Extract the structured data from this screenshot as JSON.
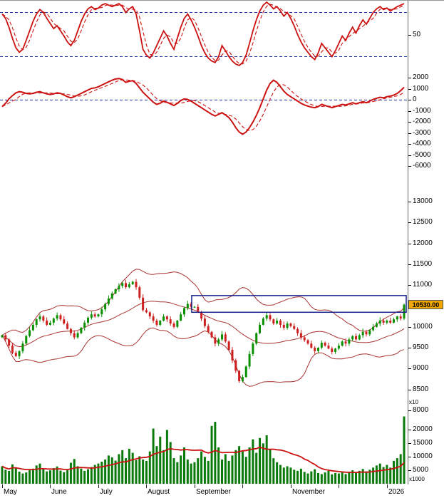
{
  "colors": {
    "indicator_red": "#cc1111",
    "band_red": "#aa3333",
    "candle_up_green": "#089000",
    "candle_down_red": "#cc2020",
    "dashed_blue": "#2233aa",
    "volume_green": "#0a7a0a",
    "annotation_blue": "#16228c",
    "price_label_bg": "#f0a800"
  },
  "x_axis": {
    "labels": [
      {
        "text": "May",
        "i": 0
      },
      {
        "text": "June",
        "i": 14
      },
      {
        "text": "July",
        "i": 28
      },
      {
        "text": "August",
        "i": 42
      },
      {
        "text": "September",
        "i": 56
      },
      {
        "text": "November",
        "i": 84
      },
      {
        "text": "2026",
        "i": 112
      }
    ],
    "minor_ticks": [
      70,
      98
    ]
  },
  "chart_data": [
    {
      "id": "oscillator",
      "type": "line",
      "legend": [
        "%K solid red",
        "%D dashed red"
      ],
      "ylim": [
        4,
        96
      ],
      "yticks": [
        50
      ],
      "reference_lines": [
        80,
        20
      ],
      "values": [
        78,
        72,
        60,
        45,
        32,
        26,
        30,
        42,
        55,
        68,
        78,
        84,
        80,
        72,
        65,
        58,
        62,
        55,
        48,
        40,
        35,
        42,
        55,
        68,
        78,
        85,
        88,
        84,
        86,
        90,
        92,
        90,
        88,
        90,
        92,
        88,
        80,
        85,
        88,
        78,
        55,
        30,
        22,
        18,
        25,
        35,
        45,
        55,
        48,
        38,
        30,
        45,
        60,
        72,
        78,
        70,
        60,
        48,
        35,
        25,
        18,
        14,
        12,
        20,
        35,
        28,
        20,
        14,
        10,
        8,
        12,
        22,
        38,
        55,
        70,
        82,
        90,
        94,
        90,
        85,
        88,
        82,
        75,
        80,
        72,
        62,
        50,
        40,
        32,
        26,
        20,
        16,
        25,
        38,
        32,
        26,
        20,
        28,
        38,
        48,
        42,
        52,
        60,
        52,
        62,
        70,
        64,
        72,
        80,
        85,
        88,
        84,
        86,
        82,
        85,
        88,
        90,
        92
      ],
      "signal_smoothing": 3
    },
    {
      "id": "momentum",
      "type": "line",
      "legend": [
        "momentum solid red",
        "signal dashed red"
      ],
      "ylim": [
        -6500,
        2800
      ],
      "yticks": [
        2000,
        1000,
        0,
        -1000,
        -2000,
        -3000,
        -4000,
        -5000,
        -6000
      ],
      "zero_line": 0,
      "values": [
        -600,
        -300,
        100,
        400,
        650,
        750,
        700,
        600,
        550,
        600,
        700,
        750,
        650,
        550,
        500,
        550,
        650,
        600,
        450,
        300,
        200,
        300,
        450,
        600,
        750,
        900,
        1050,
        1100,
        1200,
        1350,
        1500,
        1650,
        1800,
        1900,
        1950,
        1850,
        1600,
        1700,
        1750,
        1500,
        1100,
        700,
        400,
        100,
        -200,
        -400,
        -300,
        -100,
        -200,
        -350,
        -500,
        -300,
        -50,
        100,
        50,
        -100,
        -300,
        -500,
        -700,
        -900,
        -1100,
        -1300,
        -1450,
        -1300,
        -1150,
        -1350,
        -1600,
        -2000,
        -2500,
        -2900,
        -3100,
        -2900,
        -2500,
        -2000,
        -1400,
        -700,
        100,
        900,
        1500,
        1800,
        1600,
        1200,
        800,
        500,
        300,
        100,
        -100,
        -300,
        -450,
        -550,
        -650,
        -700,
        -600,
        -400,
        -500,
        -600,
        -700,
        -600,
        -500,
        -400,
        -450,
        -350,
        -250,
        -350,
        -250,
        -150,
        -250,
        -100,
        50,
        150,
        250,
        200,
        300,
        350,
        450,
        600,
        850,
        1150
      ],
      "signal_smoothing": 5
    },
    {
      "id": "price",
      "type": "candlestick",
      "ylim": [
        8000,
        13700
      ],
      "yticks": [
        13000,
        12500,
        12000,
        11500,
        11000,
        10500,
        10000,
        9500,
        9000,
        8500,
        8000
      ],
      "scale_label": "x10",
      "last_price_label": "10530.00",
      "bollinger_period": 20,
      "bollinger_stddev": 2,
      "annotation_rect": {
        "start_index": 56,
        "price_top": 10750,
        "price_bottom": 10350
      },
      "closes": [
        9800,
        9700,
        9550,
        9380,
        9300,
        9420,
        9600,
        9780,
        9920,
        10050,
        10180,
        10250,
        10150,
        10050,
        10100,
        10200,
        10280,
        10180,
        10080,
        9950,
        9850,
        9750,
        9850,
        9980,
        10100,
        10220,
        10300,
        10250,
        10300,
        10420,
        10550,
        10680,
        10800,
        10900,
        10980,
        11050,
        10950,
        11020,
        11080,
        10950,
        10700,
        10400,
        10350,
        10250,
        10150,
        10050,
        10150,
        10250,
        10180,
        10080,
        10000,
        10150,
        10300,
        10450,
        10550,
        10480,
        10480,
        10350,
        10200,
        10020,
        9880,
        9750,
        9600,
        9700,
        9820,
        9650,
        9450,
        9200,
        8950,
        8700,
        8800,
        9050,
        9350,
        9600,
        9850,
        10050,
        10200,
        10280,
        10180,
        10080,
        10150,
        10050,
        9980,
        10080,
        10020,
        9950,
        9850,
        9750,
        9680,
        9600,
        9500,
        9420,
        9500,
        9620,
        9550,
        9480,
        9400,
        9480,
        9550,
        9650,
        9600,
        9700,
        9780,
        9700,
        9800,
        9880,
        9820,
        9920,
        10000,
        10080,
        10150,
        10100,
        10150,
        10100,
        10180,
        10250,
        10200,
        10530
      ]
    },
    {
      "id": "volume",
      "type": "bar",
      "ylim": [
        0,
        27000
      ],
      "yticks": [
        20000,
        15000,
        10000,
        5000
      ],
      "scale_label": "x1000",
      "ma_period": 15,
      "values": [
        6500,
        5200,
        4800,
        7200,
        6000,
        4500,
        3800,
        4200,
        5000,
        5600,
        6800,
        7500,
        5400,
        4600,
        5000,
        5800,
        6400,
        4900,
        4300,
        5200,
        7800,
        9200,
        6500,
        5600,
        4800,
        5400,
        6200,
        7000,
        7500,
        8200,
        9000,
        10500,
        9800,
        8600,
        11000,
        12500,
        9500,
        13000,
        11500,
        8800,
        10200,
        9000,
        8500,
        12000,
        20500,
        14000,
        17500,
        12500,
        20000,
        15500,
        9500,
        8000,
        10500,
        13500,
        9000,
        7500,
        8000,
        9500,
        12000,
        10000,
        8500,
        21500,
        23000,
        13500,
        9000,
        11000,
        8500,
        10500,
        12500,
        14000,
        12000,
        10000,
        13500,
        16500,
        11500,
        17000,
        15000,
        18000,
        13000,
        9500,
        8000,
        7000,
        6000,
        6500,
        6000,
        5200,
        4800,
        5600,
        4400,
        3800,
        4600,
        5400,
        4000,
        3600,
        4200,
        4800,
        3500,
        4000,
        3800,
        4400,
        3600,
        4200,
        5000,
        4300,
        4800,
        5500,
        4600,
        5200,
        6000,
        6800,
        7500,
        6200,
        7000,
        6000,
        8500,
        9500,
        11000,
        25000
      ]
    }
  ]
}
